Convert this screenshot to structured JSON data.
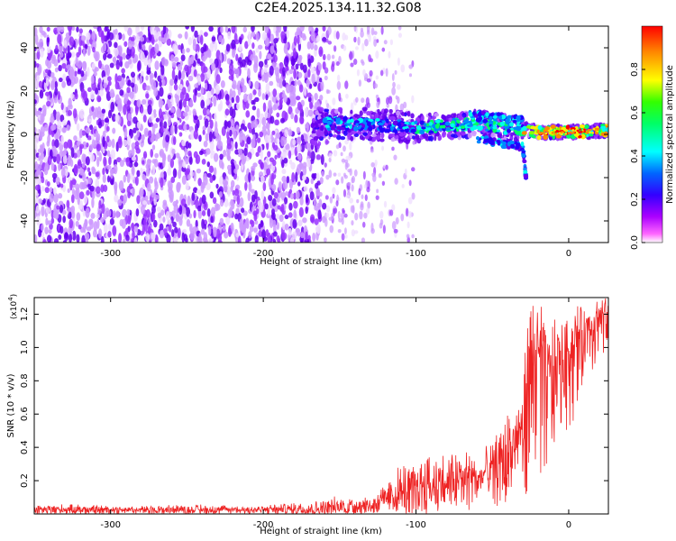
{
  "title": "C2E4.2025.134.11.32.G08",
  "charts": [
    {
      "type": "heatmap",
      "xlabel": "Height of straight line (km)",
      "ylabel": "Frequency (Hz)",
      "xlim": [
        -350,
        26
      ],
      "ylim": [
        -50,
        50
      ],
      "x_ticks": [
        -300,
        -200,
        -100,
        0
      ],
      "x_tick_labels": [
        "-300",
        "-200",
        "-100",
        "0"
      ],
      "y_ticks": [
        40,
        20,
        0,
        -20,
        -40
      ],
      "y_tick_labels": [
        "40",
        "20",
        "0",
        "-20",
        "-40"
      ],
      "colorbar": {
        "label": "Normalized spectral amplitude",
        "range": [
          0,
          1
        ],
        "ticks": [
          0.0,
          0.2,
          0.4,
          0.6,
          0.8
        ],
        "tick_labels": [
          "0.0",
          "0.2",
          "0.4",
          "0.6",
          "0.8"
        ],
        "colormap": [
          "#ffffff",
          "#ff00ff",
          "#6600ff",
          "#0000ff",
          "#00ffff",
          "#00ff00",
          "#ffff00",
          "#ff8800",
          "#ff0000"
        ]
      },
      "ridge": {
        "description_points": [
          [
            -165,
            5
          ],
          [
            -140,
            5
          ],
          [
            -120,
            4
          ],
          [
            -100,
            3
          ],
          [
            -80,
            4
          ],
          [
            -60,
            5
          ],
          [
            -40,
            3
          ],
          [
            -20,
            1
          ],
          [
            0,
            1
          ],
          [
            26,
            2
          ]
        ],
        "upper_branch": [
          [
            -65,
            9
          ],
          [
            -45,
            8
          ],
          [
            -30,
            7
          ]
        ],
        "lower_branch": [
          [
            -60,
            -2
          ],
          [
            -45,
            -4
          ],
          [
            -30,
            -6
          ],
          [
            -28,
            -20
          ]
        ]
      }
    },
    {
      "type": "line",
      "xlabel": "Height of straight line (km)",
      "ylabel": "SNR (10 * v/v)",
      "scale_note": "(x10",
      "scale_exp": "4",
      "scale_close": ")",
      "xlim": [
        -350,
        26
      ],
      "ylim": [
        0,
        1.3
      ],
      "x_ticks": [
        -300,
        -200,
        -100,
        0
      ],
      "x_tick_labels": [
        "-300",
        "-200",
        "-100",
        "0"
      ],
      "y_ticks": [
        0.2,
        0.4,
        0.6,
        0.8,
        1.0,
        1.2
      ],
      "y_tick_labels": [
        "0.2",
        "0.4",
        "0.6",
        "0.8",
        "1.0",
        "1.2"
      ],
      "line_color": "#ee2222",
      "series": [
        {
          "x": [
            -350,
            -330,
            -300,
            -270,
            -250,
            -220,
            -200,
            -180,
            -160,
            -150,
            -140,
            -130,
            -120,
            -110,
            -100,
            -90,
            -80,
            -70,
            -60,
            -50,
            -45,
            -40,
            -35,
            -30,
            -27,
            -24,
            -20,
            -17,
            -14,
            -10,
            -5,
            0,
            5,
            10,
            15,
            20,
            26
          ],
          "y": [
            0.02,
            0.02,
            0.02,
            0.02,
            0.02,
            0.02,
            0.02,
            0.02,
            0.02,
            0.025,
            0.03,
            0.04,
            0.06,
            0.08,
            0.1,
            0.13,
            0.15,
            0.16,
            0.18,
            0.22,
            0.25,
            0.3,
            0.38,
            0.5,
            0.72,
            0.85,
            0.95,
            0.8,
            0.75,
            0.85,
            0.9,
            0.95,
            1.0,
            1.05,
            1.1,
            1.15,
            1.18
          ],
          "upper": [
            0.05,
            0.06,
            0.05,
            0.05,
            0.06,
            0.05,
            0.05,
            0.07,
            0.08,
            0.12,
            0.1,
            0.12,
            0.18,
            0.3,
            0.3,
            0.42,
            0.35,
            0.4,
            0.35,
            0.45,
            0.52,
            0.62,
            0.7,
            0.85,
            1.15,
            1.25,
            1.33,
            1.2,
            1.05,
            1.2,
            1.15,
            1.2,
            1.25,
            1.25,
            1.28,
            1.3,
            1.3
          ],
          "lower": [
            0.0,
            0.0,
            0.0,
            0.0,
            0.0,
            0.0,
            0.0,
            0.0,
            0.0,
            0.0,
            0.0,
            0.0,
            0.0,
            0.0,
            0.0,
            0.0,
            0.02,
            0.02,
            0.02,
            0.03,
            0.05,
            0.05,
            0.05,
            0.05,
            0.1,
            0.2,
            0.3,
            0.15,
            0.2,
            0.4,
            0.5,
            0.5,
            0.6,
            0.8,
            0.85,
            0.9,
            1.0
          ]
        }
      ]
    }
  ]
}
